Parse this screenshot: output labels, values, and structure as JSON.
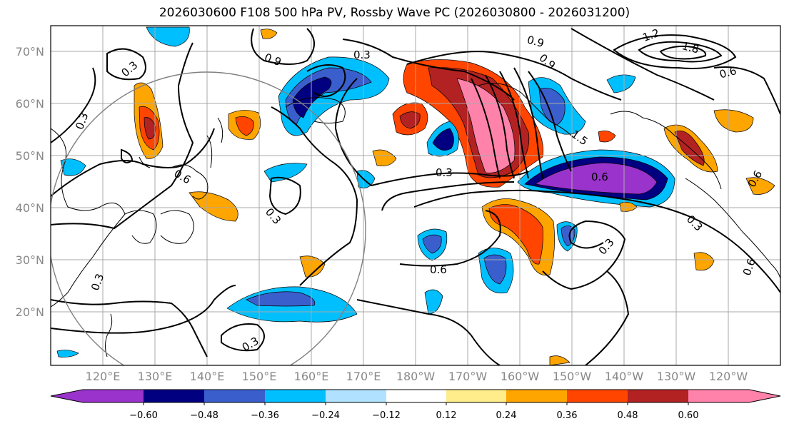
{
  "title": "2026030600 F108 500 hPa PV, Rossby Wave PC (2026030800 - 2026031200)",
  "lat_labels": [
    "70°N",
    "60°N",
    "50°N",
    "40°N",
    "30°N",
    "20°N"
  ],
  "lon_labels": [
    "120°E",
    "130°E",
    "140°E",
    "150°E",
    "160°E",
    "170°E",
    "180°W",
    "170°W",
    "160°W",
    "150°W",
    "140°W",
    "130°W",
    "120°W"
  ],
  "contour_labels": [
    "0.3",
    "0.3",
    "0.3",
    "0.3",
    "0.6",
    "0.9",
    "0.9",
    "1.2",
    "1.8",
    "0.6",
    "0.3",
    "0.9",
    "1.5",
    "0.6",
    "0.3",
    "0.3",
    "0.6",
    "0.3",
    "0.3",
    "0.6",
    "0.6"
  ],
  "colorbar": {
    "ticks": [
      "−0.60",
      "−0.48",
      "−0.36",
      "−0.24",
      "−0.12",
      "0.12",
      "0.24",
      "0.36",
      "0.48",
      "0.60"
    ],
    "colors": [
      "#9933cc",
      "#000080",
      "#3a5fcd",
      "#00bfff",
      "#b0e2ff",
      "#ffffff",
      "#ffec8b",
      "#ffa500",
      "#ff4500",
      "#b22222",
      "#ff82ab"
    ]
  }
}
